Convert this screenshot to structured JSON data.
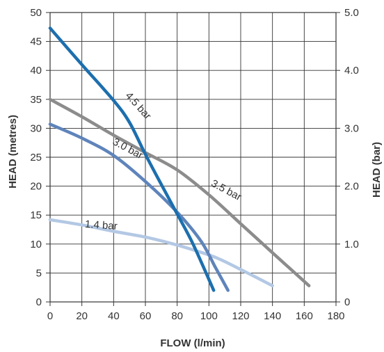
{
  "chart_data": {
    "type": "line",
    "xlabel": "FLOW (l/min)",
    "ylabel": "HEAD (metres)",
    "y2label": "HEAD (bar)",
    "xlim": [
      0,
      180
    ],
    "ylim": [
      0,
      50
    ],
    "y2lim": [
      0,
      5
    ],
    "grid": true,
    "x_ticks": [
      "0",
      "20",
      "40",
      "60",
      "80",
      "100",
      "120",
      "140",
      "160",
      "180"
    ],
    "y_ticks": [
      "0",
      "5",
      "10",
      "15",
      "20",
      "25",
      "30",
      "35",
      "40",
      "45",
      "50"
    ],
    "y2_ticks": [
      "0",
      "1.0",
      "2.0",
      "3.0",
      "4.0",
      "5.0"
    ],
    "series": [
      {
        "name": "1.4 bar",
        "color": "#b3c8e4",
        "x": [
          0,
          20,
          40,
          60,
          75,
          90,
          105,
          120,
          140
        ],
        "y": [
          14.2,
          13.3,
          12.2,
          11.2,
          10.2,
          9.0,
          7.6,
          5.6,
          2.8
        ]
      },
      {
        "name": "3.0 bar",
        "color": "#5f84bb",
        "x": [
          0,
          20,
          40,
          60,
          80,
          95,
          104,
          112
        ],
        "y": [
          30.7,
          28.3,
          25.3,
          20.8,
          15.5,
          10.5,
          6.0,
          2.0
        ]
      },
      {
        "name": "3.5 bar",
        "color": "#8c8c8c",
        "x": [
          0,
          20,
          40,
          60,
          80,
          100,
          120,
          140,
          163
        ],
        "y": [
          35.0,
          32.0,
          28.8,
          25.8,
          22.8,
          18.5,
          13.5,
          8.5,
          2.8
        ]
      },
      {
        "name": "4.5 bar",
        "color": "#1d6fae",
        "x": [
          0,
          20,
          40,
          50,
          60,
          70,
          80,
          90,
          103
        ],
        "y": [
          47.3,
          41.0,
          34.8,
          31.0,
          25.5,
          20.3,
          15.2,
          10.0,
          2.0
        ]
      }
    ]
  }
}
